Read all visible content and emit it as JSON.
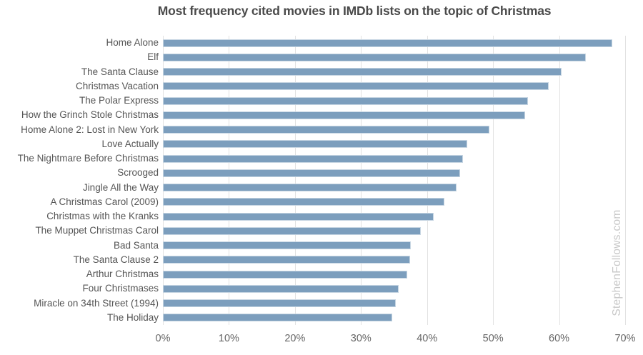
{
  "title": "Most frequency cited movies in IMDb lists on the topic of Christmas",
  "watermark": "StephenFollows.com",
  "colors": {
    "bar": "#7c9ebd",
    "bar_border": "#c6d5e2",
    "gridline": "#e2e2e2",
    "title_text": "#4a4a4a",
    "category_text": "#555555",
    "axis_text": "#666666",
    "watermark_text": "#c8c8c8",
    "background": "#ffffff"
  },
  "chart_data": {
    "type": "bar",
    "orientation": "horizontal",
    "title": "Most frequency cited movies in IMDb lists on the topic of Christmas",
    "xlabel": "",
    "ylabel": "",
    "unit": "%",
    "xlim": [
      0,
      70
    ],
    "x_ticks": [
      "0%",
      "10%",
      "20%",
      "30%",
      "40%",
      "50%",
      "60%",
      "70%"
    ],
    "x_tick_values": [
      0,
      10,
      20,
      30,
      40,
      50,
      60,
      70
    ],
    "grid": "vertical-only",
    "legend": "none",
    "categories": [
      "Home Alone",
      "Elf",
      "The Santa Clause",
      "Christmas Vacation",
      "The Polar Express",
      "How the Grinch Stole Christmas",
      "Home Alone 2: Lost in New York",
      "Love Actually",
      "The Nightmare Before Christmas",
      "Scrooged",
      "Jingle All the Way",
      "A Christmas Carol (2009)",
      "Christmas with the Kranks",
      "The Muppet Christmas Carol",
      "Bad Santa",
      "The Santa Clause 2",
      "Arthur Christmas",
      "Four Christmases",
      "Miracle on 34th Street (1994)",
      "The Holiday"
    ],
    "values": [
      68,
      64,
      60.4,
      58.4,
      55.3,
      54.8,
      49.4,
      46.1,
      45.4,
      45,
      44.5,
      42.6,
      41,
      39.1,
      37.5,
      37.4,
      37,
      35.7,
      35.3,
      34.7
    ]
  }
}
